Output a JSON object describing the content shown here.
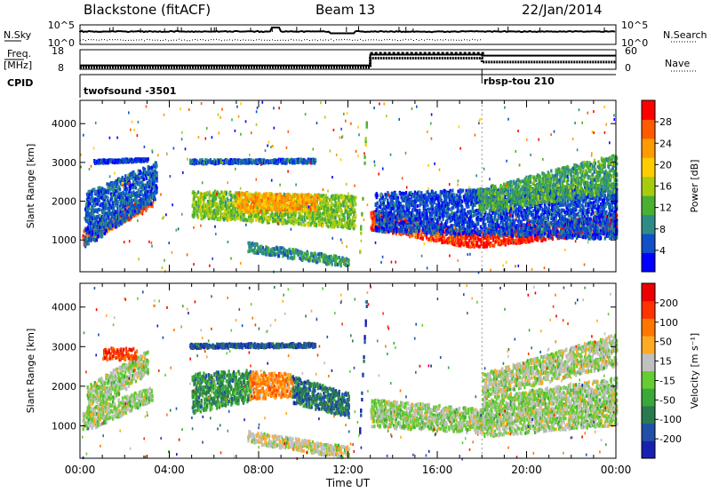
{
  "header": {
    "site": "Blackstone (fitACF)",
    "beam": "Beam 13",
    "date": "22/Jan/2014"
  },
  "left_labels": {
    "nsky": "N.Sky",
    "freq": "Freq.",
    "mhz": "[MHz]",
    "cpid": "CPID"
  },
  "right_labels": {
    "nsearch": "N.Search",
    "nave": "Nave"
  },
  "cpid_modes": [
    "twofsound -3501",
    "rbsp-tou 210"
  ],
  "chart_data": [
    {
      "type": "line",
      "name": "noise-panel",
      "ylabel": "N.Sky",
      "ytick_labels": [
        "10^5",
        "10^0"
      ],
      "y2label": "N.Search",
      "y2tick_labels": [
        "10^5",
        "10^0"
      ],
      "xlim": [
        0,
        24
      ]
    },
    {
      "type": "line",
      "name": "freq-nave-panel",
      "ylabel": "Freq. [MHz]",
      "yticks": [
        8,
        18
      ],
      "y2label": "Nave",
      "y2ticks": [
        0,
        60
      ],
      "series": [
        {
          "name": "Freq.",
          "x": [
            0,
            13,
            13,
            18,
            18,
            24
          ],
          "values": [
            10,
            10,
            15.5,
            15.5,
            15,
            15
          ]
        },
        {
          "name": "Nave",
          "x": [
            0,
            13,
            13,
            18,
            18,
            24
          ],
          "values": [
            6,
            6,
            34,
            34,
            22,
            22
          ]
        }
      ],
      "xlim": [
        0,
        24
      ]
    },
    {
      "type": "heatmap",
      "name": "power-panel",
      "ylabel": "Slant Range [km]",
      "yticks": [
        1000,
        2000,
        3000,
        4000
      ],
      "ylim": [
        180,
        4600
      ],
      "xlim": [
        0,
        24
      ],
      "colorbar": {
        "label": "Power [dB]",
        "ticks": [
          4,
          8,
          12,
          16,
          20,
          24,
          28
        ],
        "range": [
          0,
          32
        ],
        "colors": [
          "#0000ff",
          "#1050c8",
          "#2e8c88",
          "#4ab030",
          "#a6cc10",
          "#ffcc00",
          "#ff9a00",
          "#ff5a00",
          "#ff0000"
        ]
      },
      "bands": [
        {
          "x": [
            0.1,
            3.2
          ],
          "y0": [
            1050,
            2000
          ],
          "dy": [
            200,
            160
          ],
          "level": 0.82
        },
        {
          "x": [
            0.2,
            3.4
          ],
          "y0": [
            1500,
            2500
          ],
          "dy": [
            700,
            500
          ],
          "level": 0.18
        },
        {
          "x": [
            0.6,
            3.0
          ],
          "y0": [
            3000,
            3050
          ],
          "dy": [
            40,
            40
          ],
          "level": 0.12
        },
        {
          "x": [
            5.0,
            12.3
          ],
          "y0": [
            1900,
            1700
          ],
          "dy": [
            350,
            420
          ],
          "level": 0.45
        },
        {
          "x": [
            7.0,
            10.6
          ],
          "y0": [
            1950,
            1950
          ],
          "dy": [
            250,
            200
          ],
          "level": 0.7
        },
        {
          "x": [
            4.9,
            10.5
          ],
          "y0": [
            3000,
            3020
          ],
          "dy": [
            50,
            50
          ],
          "level": 0.18
        },
        {
          "x": [
            7.5,
            12.0
          ],
          "y0": [
            800,
            400
          ],
          "dy": [
            120,
            120
          ],
          "level": 0.3
        },
        {
          "x": [
            12.5,
            12.8
          ],
          "y0": [
            800,
            3900
          ],
          "dy": [
            150,
            150
          ],
          "level": 0.45
        },
        {
          "x": [
            13.0,
            17.5
          ],
          "y0": [
            1500,
            1000
          ],
          "dy": [
            250,
            220
          ],
          "level": 0.88
        },
        {
          "x": [
            17.5,
            24.0
          ],
          "y0": [
            1000,
            1400
          ],
          "dy": [
            220,
            250
          ],
          "level": 0.92
        },
        {
          "x": [
            13.2,
            24.0
          ],
          "y0": [
            1700,
            1700
          ],
          "dy": [
            500,
            700
          ],
          "level": 0.15
        },
        {
          "x": [
            17.8,
            24.0
          ],
          "y0": [
            2000,
            2700
          ],
          "dy": [
            300,
            500
          ],
          "level": 0.35
        }
      ]
    },
    {
      "type": "heatmap",
      "name": "velocity-panel",
      "ylabel": "Slant Range [km]",
      "yticks": [
        1000,
        2000,
        3000,
        4000
      ],
      "ylim": [
        180,
        4600
      ],
      "xlabel": "Time UT",
      "xticks": [
        "00:00",
        "04:00",
        "08:00",
        "12:00",
        "16:00",
        "20:00",
        "00:00"
      ],
      "xlim": [
        0,
        24
      ],
      "colorbar": {
        "label": "Velocity [m s⁻¹]",
        "ticks": [
          200,
          100,
          50,
          15,
          -15,
          -50,
          -100,
          -200
        ],
        "range": [
          -240,
          240
        ],
        "colors": [
          "#1820b0",
          "#2050a8",
          "#2a7a50",
          "#3aa83a",
          "#66cc33",
          "#c0c0c0",
          "#ffaa22",
          "#ff7700",
          "#ff3300",
          "#ee0000"
        ]
      },
      "bands": [
        {
          "x": [
            0.1,
            3.2
          ],
          "y0": [
            1050,
            1800
          ],
          "dy": [
            250,
            200
          ],
          "level": 0.5
        },
        {
          "x": [
            0.3,
            3.0
          ],
          "y0": [
            1600,
            2600
          ],
          "dy": [
            400,
            300
          ],
          "level": 0.5
        },
        {
          "x": [
            1.0,
            2.5
          ],
          "y0": [
            2800,
            2800
          ],
          "dy": [
            150,
            150
          ],
          "level": 0.85
        },
        {
          "x": [
            5.0,
            7.6
          ],
          "y0": [
            1800,
            2000
          ],
          "dy": [
            500,
            400
          ],
          "level": 0.3
        },
        {
          "x": [
            7.6,
            9.5
          ],
          "y0": [
            2000,
            2000
          ],
          "dy": [
            350,
            300
          ],
          "level": 0.72
        },
        {
          "x": [
            9.5,
            12.0
          ],
          "y0": [
            1900,
            1500
          ],
          "dy": [
            350,
            300
          ],
          "level": 0.22
        },
        {
          "x": [
            4.9,
            10.5
          ],
          "y0": [
            3000,
            3020
          ],
          "dy": [
            50,
            50
          ],
          "level": 0.15
        },
        {
          "x": [
            7.5,
            12.0
          ],
          "y0": [
            700,
            300
          ],
          "dy": [
            150,
            150
          ],
          "level": 0.55
        },
        {
          "x": [
            12.5,
            12.8
          ],
          "y0": [
            900,
            4000
          ],
          "dy": [
            150,
            150
          ],
          "level": 0.08
        },
        {
          "x": [
            13.0,
            18.0
          ],
          "y0": [
            1300,
            1100
          ],
          "dy": [
            350,
            300
          ],
          "level": 0.5
        },
        {
          "x": [
            18.0,
            24.0
          ],
          "y0": [
            1200,
            1600
          ],
          "dy": [
            500,
            600
          ],
          "level": 0.5
        },
        {
          "x": [
            18.0,
            24.0
          ],
          "y0": [
            2000,
            2900
          ],
          "dy": [
            300,
            400
          ],
          "level": 0.52
        }
      ]
    }
  ]
}
